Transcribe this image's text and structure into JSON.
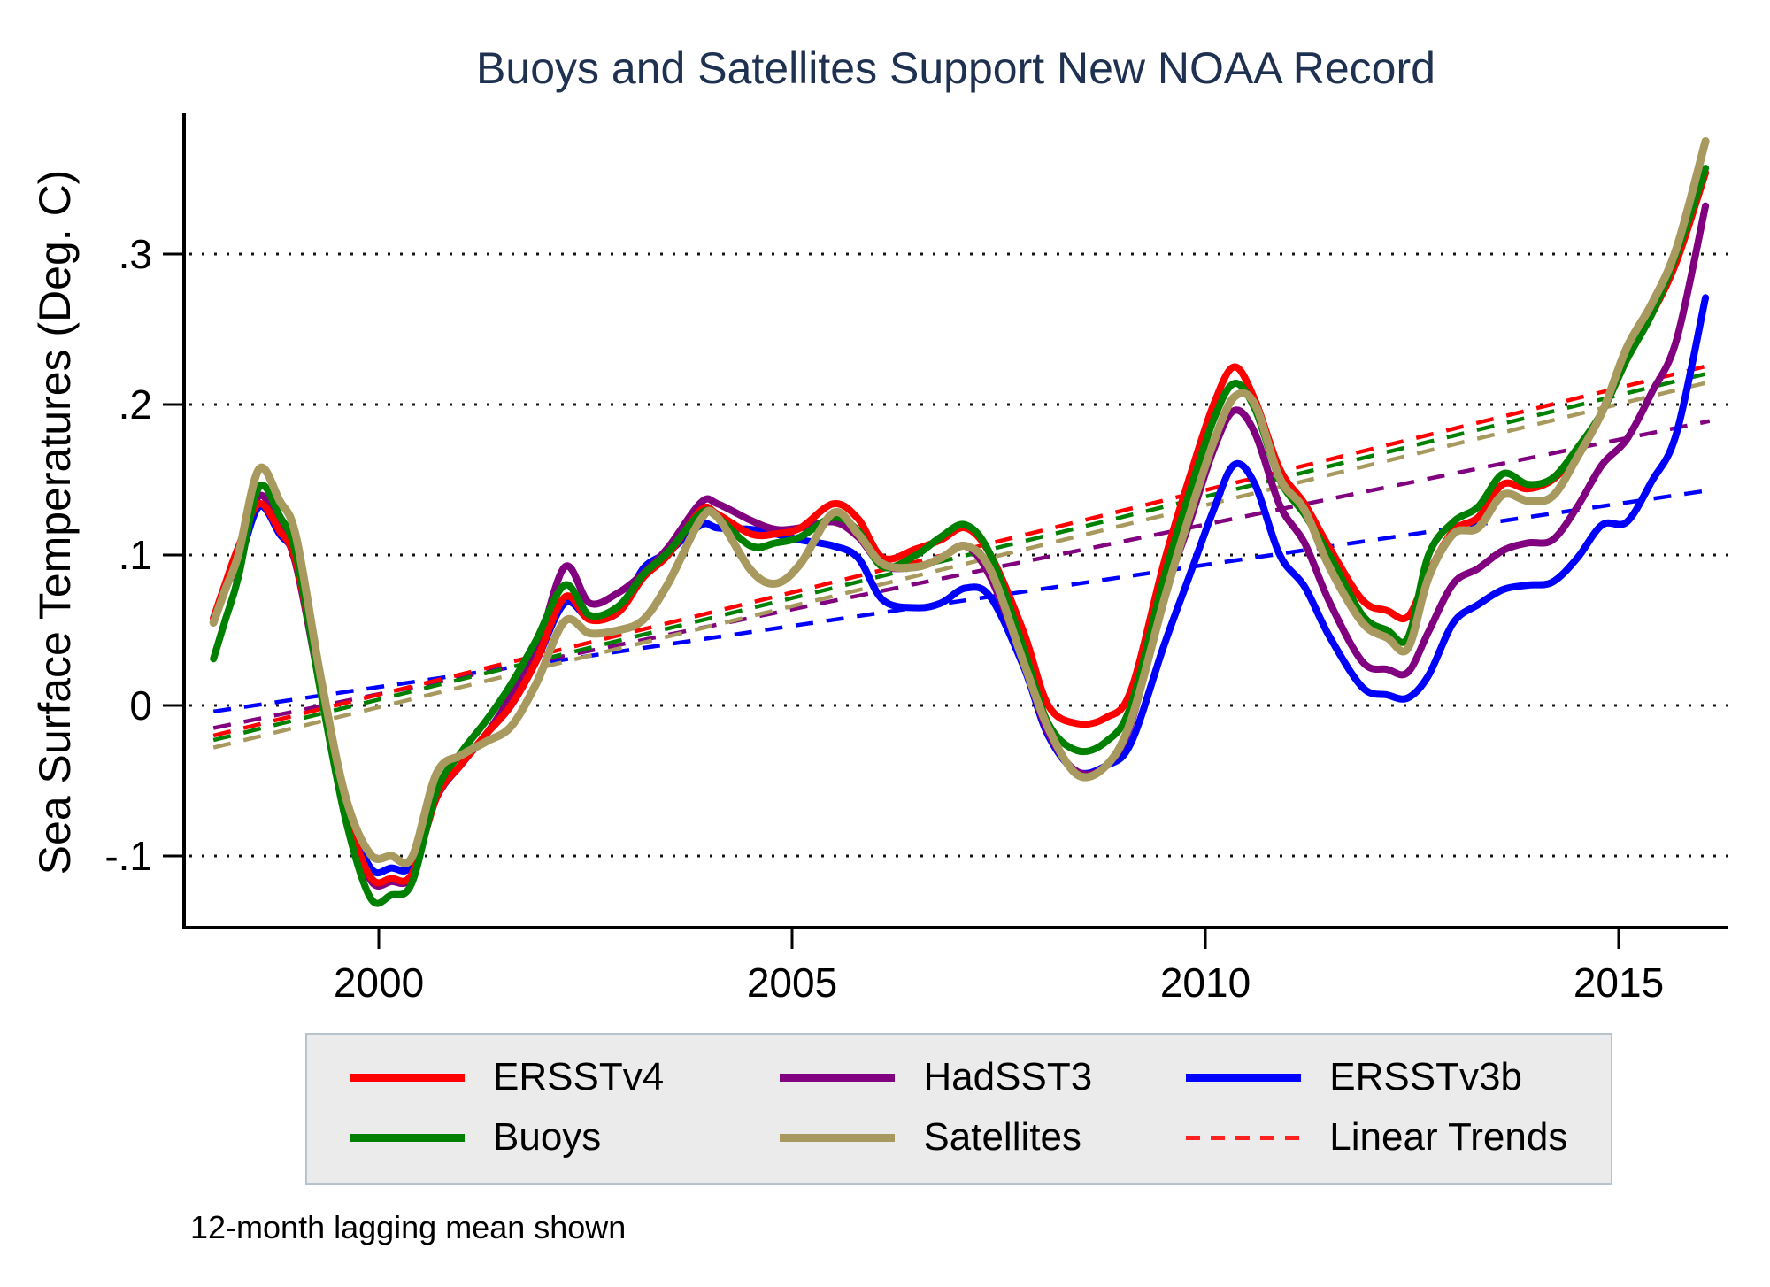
{
  "title": {
    "text": "Buoys and Satellites Support New NOAA Record",
    "color": "#1f3150"
  },
  "caption": "12-month lagging mean shown",
  "axes": {
    "y": {
      "label": "Sea Surface Temperatures (Deg. C)",
      "ticks": [
        {
          "value": 0.3,
          "label": ".3"
        },
        {
          "value": 0.2,
          "label": ".2"
        },
        {
          "value": 0.1,
          "label": ".1"
        },
        {
          "value": 0.0,
          "label": "0"
        },
        {
          "value": -0.1,
          "label": "-.1"
        }
      ]
    },
    "x": {
      "ticks": [
        {
          "value": 2000,
          "label": "2000"
        },
        {
          "value": 2005,
          "label": "2005"
        },
        {
          "value": 2010,
          "label": "2010"
        },
        {
          "value": 2015,
          "label": "2015"
        }
      ]
    }
  },
  "legend": {
    "items": [
      {
        "label": "ERSSTv4",
        "color": "#ff0000",
        "style": "solid"
      },
      {
        "label": "HadSST3",
        "color": "#800080",
        "style": "solid"
      },
      {
        "label": "ERSSTv3b",
        "color": "#0000ff",
        "style": "solid"
      },
      {
        "label": "Buoys",
        "color": "#008000",
        "style": "solid"
      },
      {
        "label": "Satellites",
        "color": "#a89a5e",
        "style": "solid"
      },
      {
        "label": "Linear Trends",
        "color": "#ff2020",
        "style": "dashed"
      }
    ]
  },
  "chart_data": {
    "type": "line",
    "title": "Buoys and Satellites Support New NOAA Record",
    "xlabel": "",
    "ylabel": "Sea Surface Temperatures (Deg. C)",
    "xlim": [
      1997.65,
      2016.55
    ],
    "ylim": [
      -0.148,
      0.39
    ],
    "grid": "dotted horizontal at y ticks",
    "legend_position": "bottom",
    "note": "12-month lagging mean shown",
    "x": [
      1998.0,
      1998.15,
      1998.3,
      1998.55,
      1998.8,
      1999.0,
      1999.3,
      1999.6,
      1999.9,
      2000.15,
      2000.4,
      2000.7,
      2001.0,
      2001.3,
      2001.6,
      2001.9,
      2002.25,
      2002.55,
      2002.9,
      2003.2,
      2003.5,
      2003.9,
      2004.1,
      2004.5,
      2004.8,
      2005.1,
      2005.5,
      2005.8,
      2006.1,
      2006.5,
      2006.8,
      2007.1,
      2007.4,
      2007.8,
      2008.1,
      2008.45,
      2008.8,
      2009.1,
      2009.5,
      2009.8,
      2010.1,
      2010.35,
      2010.6,
      2010.9,
      2011.2,
      2011.5,
      2011.9,
      2012.2,
      2012.45,
      2012.7,
      2013.0,
      2013.3,
      2013.6,
      2013.9,
      2014.2,
      2014.5,
      2014.8,
      2015.1,
      2015.4,
      2015.7,
      2016.05
    ],
    "series": [
      {
        "name": "ERSSTv4",
        "color": "#ff0000",
        "values": [
          0.058,
          0.082,
          0.105,
          0.134,
          0.116,
          0.095,
          0.012,
          -0.068,
          -0.114,
          -0.115,
          -0.112,
          -0.061,
          -0.039,
          -0.019,
          0.0,
          0.029,
          0.072,
          0.057,
          0.062,
          0.085,
          0.1,
          0.13,
          0.127,
          0.114,
          0.114,
          0.118,
          0.134,
          0.124,
          0.098,
          0.104,
          0.11,
          0.118,
          0.1,
          0.049,
          0.0,
          -0.012,
          -0.008,
          0.01,
          0.095,
          0.15,
          0.2,
          0.225,
          0.203,
          0.157,
          0.134,
          0.105,
          0.07,
          0.063,
          0.059,
          0.088,
          0.116,
          0.125,
          0.147,
          0.144,
          0.15,
          0.168,
          0.195,
          0.23,
          0.26,
          0.295,
          0.354
        ]
      },
      {
        "name": "HadSST3",
        "color": "#800080",
        "values": [
          0.058,
          0.08,
          0.096,
          0.139,
          0.119,
          0.093,
          0.01,
          -0.068,
          -0.116,
          -0.117,
          -0.113,
          -0.061,
          -0.039,
          -0.019,
          0.006,
          0.035,
          0.092,
          0.068,
          0.075,
          0.088,
          0.105,
          0.135,
          0.134,
          0.123,
          0.117,
          0.118,
          0.122,
          0.112,
          0.093,
          0.092,
          0.098,
          0.106,
          0.085,
          0.029,
          -0.018,
          -0.044,
          -0.04,
          -0.012,
          0.072,
          0.12,
          0.17,
          0.196,
          0.181,
          0.133,
          0.108,
          0.069,
          0.029,
          0.024,
          0.022,
          0.049,
          0.081,
          0.091,
          0.103,
          0.108,
          0.11,
          0.132,
          0.16,
          0.177,
          0.208,
          0.243,
          0.332
        ]
      },
      {
        "name": "ERSSTv3b",
        "color": "#0000ff",
        "values": [
          0.056,
          0.079,
          0.093,
          0.132,
          0.114,
          0.095,
          0.01,
          -0.065,
          -0.108,
          -0.108,
          -0.106,
          -0.061,
          -0.039,
          -0.019,
          0.0,
          0.029,
          0.068,
          0.058,
          0.062,
          0.091,
          0.102,
          0.12,
          0.118,
          0.117,
          0.114,
          0.11,
          0.106,
          0.098,
          0.07,
          0.065,
          0.068,
          0.078,
          0.072,
          0.026,
          -0.02,
          -0.044,
          -0.04,
          -0.025,
          0.04,
          0.085,
          0.13,
          0.16,
          0.147,
          0.1,
          0.079,
          0.046,
          0.012,
          0.007,
          0.005,
          0.02,
          0.055,
          0.067,
          0.077,
          0.08,
          0.082,
          0.098,
          0.12,
          0.122,
          0.149,
          0.181,
          0.271
        ]
      },
      {
        "name": "Buoys",
        "color": "#008000",
        "values": [
          0.031,
          0.058,
          0.085,
          0.145,
          0.126,
          0.1,
          0.008,
          -0.076,
          -0.128,
          -0.126,
          -0.118,
          -0.057,
          -0.031,
          -0.01,
          0.014,
          0.043,
          0.08,
          0.06,
          0.066,
          0.087,
          0.102,
          0.128,
          0.125,
          0.106,
          0.108,
          0.112,
          0.125,
          0.116,
          0.092,
          0.1,
          0.112,
          0.12,
          0.1,
          0.038,
          -0.012,
          -0.03,
          -0.024,
          0.0,
          0.085,
          0.14,
          0.19,
          0.214,
          0.197,
          0.15,
          0.127,
          0.1,
          0.06,
          0.05,
          0.045,
          0.1,
          0.122,
          0.132,
          0.154,
          0.147,
          0.151,
          0.171,
          0.195,
          0.23,
          0.26,
          0.3,
          0.357
        ]
      },
      {
        "name": "Satellites",
        "color": "#a89a5e",
        "values": [
          0.055,
          0.078,
          0.1,
          0.157,
          0.136,
          0.112,
          0.018,
          -0.061,
          -0.099,
          -0.1,
          -0.101,
          -0.045,
          -0.033,
          -0.024,
          -0.014,
          0.014,
          0.056,
          0.048,
          0.05,
          0.057,
          0.081,
          0.124,
          0.125,
          0.09,
          0.081,
          0.094,
          0.128,
          0.114,
          0.094,
          0.092,
          0.098,
          0.106,
          0.09,
          0.029,
          -0.015,
          -0.046,
          -0.04,
          -0.01,
          0.07,
          0.125,
          0.175,
          0.205,
          0.2,
          0.151,
          0.13,
          0.092,
          0.055,
          0.045,
          0.038,
          0.085,
          0.114,
          0.118,
          0.14,
          0.136,
          0.139,
          0.165,
          0.195,
          0.238,
          0.267,
          0.304,
          0.375
        ]
      }
    ],
    "draw_order": [
      "ERSSTv3b",
      "HadSST3",
      "ERSSTv4",
      "Buoys",
      "Satellites"
    ],
    "trends": [
      {
        "name": "ERSSTv3b-trend",
        "color": "#0000ff",
        "x": [
          1998.0,
          2016.1
        ],
        "y": [
          -0.004,
          0.143
        ]
      },
      {
        "name": "HadSST3-trend",
        "color": "#800080",
        "x": [
          1998.0,
          2016.1
        ],
        "y": [
          -0.015,
          0.189
        ]
      },
      {
        "name": "Satellites-trend",
        "color": "#a89a5e",
        "x": [
          1998.0,
          2016.1
        ],
        "y": [
          -0.028,
          0.215
        ]
      },
      {
        "name": "Buoys-trend",
        "color": "#008000",
        "x": [
          1998.0,
          2016.1
        ],
        "y": [
          -0.023,
          0.221
        ]
      },
      {
        "name": "ERSSTv4-trend",
        "color": "#ff0000",
        "x": [
          1998.0,
          2016.1
        ],
        "y": [
          -0.02,
          0.226
        ]
      }
    ]
  }
}
